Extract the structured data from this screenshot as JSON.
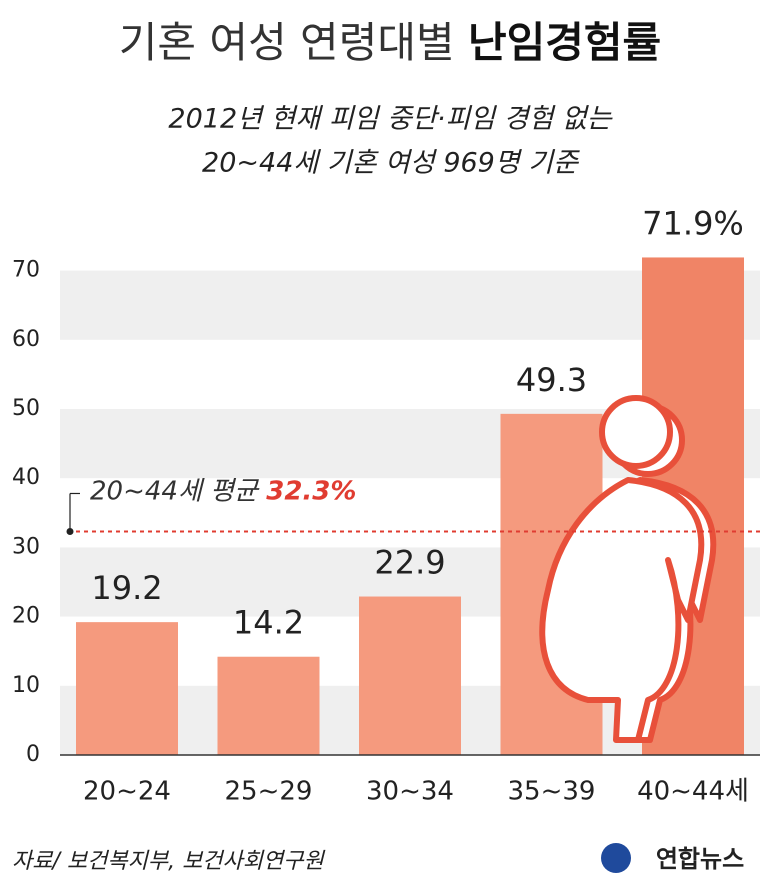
{
  "chart_data": {
    "type": "bar",
    "title_plain": "기혼 여성 연령대별",
    "title_bold": "난임경험률",
    "subtitle": [
      "2012년 현재 피임 중단·피임 경험 없는",
      "20~44세 기혼 여성 969명 기준"
    ],
    "categories": [
      "20~24",
      "25~29",
      "30~34",
      "35~39",
      "40~44세"
    ],
    "values": [
      19.2,
      14.2,
      22.9,
      49.3,
      71.9
    ],
    "value_labels": [
      "19.2",
      "14.2",
      "22.9",
      "49.3",
      "71.9%"
    ],
    "colors": [
      "#f59a7e",
      "#f59a7e",
      "#f59a7e",
      "#f59a7e",
      "#f08466"
    ],
    "ylim": [
      0,
      75
    ],
    "yticks": [
      0,
      10,
      20,
      30,
      40,
      50,
      60,
      70
    ],
    "average": {
      "value": 32.3,
      "label": "20~44세 평균",
      "value_label": "32.3%",
      "color": "#e03c31"
    },
    "source": "자료/ 보건복지부, 보건사회연구원",
    "logo": "연합뉴스"
  }
}
